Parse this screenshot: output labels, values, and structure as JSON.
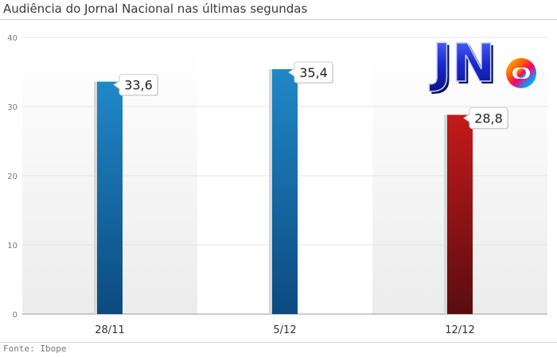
{
  "header": {
    "title": "Audiência do Jornal Nacional nas últimas segundas"
  },
  "footer": {
    "source": "Fonte: Ibope"
  },
  "logo": {
    "text": "JN",
    "icon": "globo-globe-icon"
  },
  "colors": {
    "bar_blue_top": "#2088c8",
    "bar_blue_bottom": "#0c4a80",
    "bar_red_top": "#c41a1a",
    "bar_red_bottom": "#5a0c10",
    "band": "#eeeeee",
    "grid": "#e4e4e4",
    "axis": "#999999"
  },
  "chart_data": {
    "type": "bar",
    "categories": [
      "28/11",
      "5/12",
      "12/12"
    ],
    "values": [
      33.6,
      35.4,
      28.8
    ],
    "value_labels": [
      "33,6",
      "35,4",
      "28,8"
    ],
    "bar_colors": [
      "blue",
      "blue",
      "red"
    ],
    "yticks": [
      0,
      10,
      20,
      30,
      40
    ],
    "ylim": [
      0,
      40
    ],
    "grid": true,
    "legend": "none"
  }
}
